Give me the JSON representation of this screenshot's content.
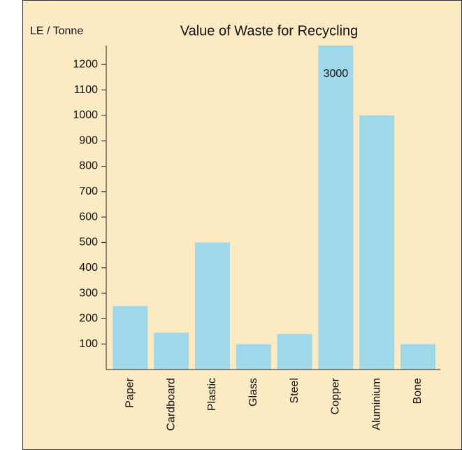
{
  "chart_data": {
    "type": "bar",
    "title": "Value of Waste for Recycling",
    "y_label": "LE / Tonne",
    "categories": [
      "Paper",
      "Cardboard",
      "Plastic",
      "Glass",
      "Steel",
      "Copper",
      "Aluminium",
      "Bone"
    ],
    "values": [
      250,
      145,
      500,
      100,
      140,
      3000,
      1000,
      100
    ],
    "value_labels": [
      null,
      null,
      null,
      null,
      null,
      "3000",
      null,
      null
    ],
    "color": "#9ed8e9",
    "background": "#fcebc2",
    "ylim": [
      0,
      1275
    ],
    "yticks": [
      100,
      200,
      300,
      400,
      500,
      600,
      700,
      800,
      900,
      1000,
      1100,
      1200
    ],
    "grid": false
  }
}
